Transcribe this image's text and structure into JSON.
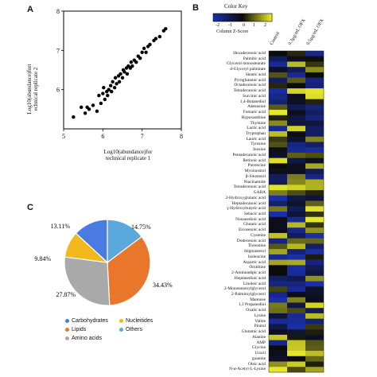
{
  "panels": {
    "a": "A",
    "b": "B",
    "c": "C"
  },
  "colors": {
    "carbohydrates": "#4a7be0",
    "lipids": "#e8772b",
    "amino_acids": "#a9a9a9",
    "nucleotides": "#f3b81b",
    "others": "#5ba9dc",
    "heat_low": "#1a2ea8",
    "heat_mid": "#0b0b0b",
    "heat_high": "#e6e82a"
  },
  "chart_data": [
    {
      "type": "scatter",
      "xlabel_line1": "Log10(abundance)for",
      "xlabel_line2": "technical replicate 1",
      "ylabel_line1": "Log10(abundance)fort",
      "ylabel_line2": "echnical replicate 2",
      "xlim": [
        5,
        8
      ],
      "ylim": [
        5,
        8
      ],
      "xticks": [
        "5",
        "6",
        "7",
        "8"
      ],
      "yticks": [
        "6",
        "7",
        "8"
      ],
      "points": [
        [
          5.25,
          5.3
        ],
        [
          5.45,
          5.55
        ],
        [
          5.55,
          5.4
        ],
        [
          5.6,
          5.55
        ],
        [
          5.65,
          5.5
        ],
        [
          5.75,
          5.6
        ],
        [
          5.85,
          5.45
        ],
        [
          5.9,
          5.85
        ],
        [
          5.95,
          5.65
        ],
        [
          6.0,
          5.9
        ],
        [
          6.02,
          6.05
        ],
        [
          6.05,
          5.75
        ],
        [
          6.1,
          5.95
        ],
        [
          6.12,
          5.85
        ],
        [
          6.15,
          6.0
        ],
        [
          6.2,
          6.1
        ],
        [
          6.22,
          5.95
        ],
        [
          6.25,
          6.2
        ],
        [
          6.3,
          6.05
        ],
        [
          6.32,
          6.3
        ],
        [
          6.35,
          6.15
        ],
        [
          6.4,
          6.35
        ],
        [
          6.42,
          6.2
        ],
        [
          6.45,
          6.4
        ],
        [
          6.5,
          6.3
        ],
        [
          6.52,
          6.5
        ],
        [
          6.55,
          6.45
        ],
        [
          6.6,
          6.55
        ],
        [
          6.62,
          6.4
        ],
        [
          6.65,
          6.6
        ],
        [
          6.7,
          6.55
        ],
        [
          6.72,
          6.7
        ],
        [
          6.75,
          6.6
        ],
        [
          6.8,
          6.75
        ],
        [
          6.85,
          6.7
        ],
        [
          6.9,
          6.85
        ],
        [
          6.95,
          6.8
        ],
        [
          7.0,
          6.95
        ],
        [
          7.05,
          7.05
        ],
        [
          7.1,
          6.95
        ],
        [
          7.15,
          7.1
        ],
        [
          7.2,
          7.15
        ],
        [
          7.3,
          7.25
        ],
        [
          7.35,
          7.3
        ],
        [
          7.45,
          7.35
        ],
        [
          7.55,
          7.5
        ],
        [
          7.6,
          7.55
        ]
      ]
    },
    {
      "type": "heatmap",
      "legend_title": "Color Key",
      "legend_subtitle": "Column Z-Score",
      "legend_ticks": [
        "-2",
        "-1",
        "0",
        "1",
        "2"
      ],
      "columns": [
        "Control",
        "0.3μg/mL OFX",
        "0.5μg/mL OFX"
      ],
      "rows": [
        "Hexadecenoic acid",
        "Palmitic acid",
        "Glycerol monostearate",
        "d-Glyceryl palmitate",
        "Stearic acid",
        "Pyroglutamic acid",
        "Octadecenoic acid",
        "Tetradecanoic acid",
        "Succinic acid",
        "1,4-Butanediol",
        "Adenosine",
        "Fumaric acid",
        "Hypoxanthine",
        "Thymine",
        "Lactic acid",
        "Tryptophan",
        "Lauric acid",
        "Tyrosine",
        "Inosine",
        "Pentadecanoic acid",
        "Retinoic acid",
        "Putrescine",
        "Myoinositol",
        "β-Sitosterol",
        "Niacinamide",
        "Tetradecenoic acid",
        "GABA",
        "2-Hydroxyglutaric acid",
        "Heptadecanoic acid",
        "γ-Hydroxybutyric acid",
        "Sebacic acid",
        "Nonanedioic acid",
        "Glutaric acid",
        "Eicosenoic acid",
        "Cysteine",
        "Dodecenoic acid",
        "Threonine",
        "Stigmasterol",
        "Isoleucine",
        "Aspartic acid",
        "Ornithine",
        "2-Aminoadipic acid",
        "Heptanedioic acid",
        "Linoleic acid",
        "2-Monostearoylglycerol",
        "2-Palmitoylglycerol",
        "Mannose",
        "1,3 Propanediol",
        "Oxalic acid",
        "Lysine",
        "Valine",
        "Pinitol",
        "Glutamic acid",
        "Alanine",
        "AMP",
        "Glycine",
        "Uracil",
        "guanine",
        "Oleic acid",
        "N-α-Acetyl-L-Lysine"
      ],
      "note": "cell values are per-metabolite column z-scores in [-2, 2]"
    },
    {
      "type": "pie",
      "slices": [
        {
          "name": "Carbohydrates",
          "value": 13.11,
          "label": "13.11%",
          "color_key": "carbohydrates"
        },
        {
          "name": "Others",
          "value": 14.75,
          "label": "14.75%",
          "color_key": "others"
        },
        {
          "name": "Lipids",
          "value": 34.43,
          "label": "34.43%",
          "color_key": "lipids"
        },
        {
          "name": "Amino acids",
          "value": 27.87,
          "label": "27.87%",
          "color_key": "amino_acids"
        },
        {
          "name": "Nucleitides",
          "value": 9.84,
          "label": "9.84%",
          "color_key": "nucleotides"
        }
      ],
      "legend": [
        "Carbohydrates",
        "Nucleitides",
        "Lipids",
        "Others",
        "Amino acids"
      ]
    }
  ]
}
